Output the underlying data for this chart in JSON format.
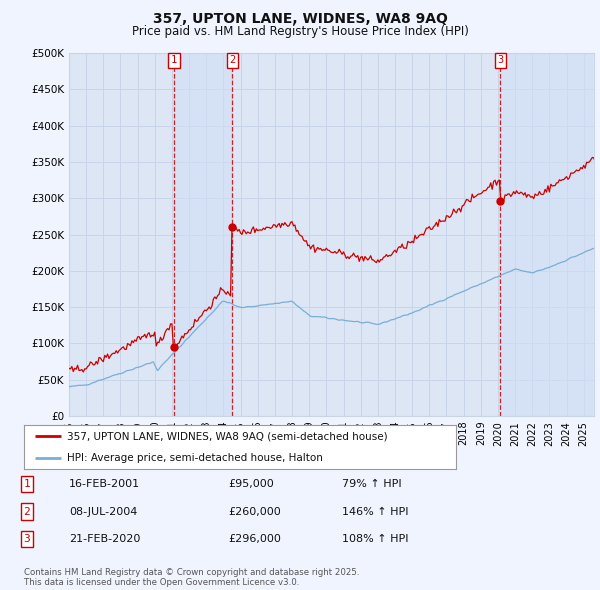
{
  "title": "357, UPTON LANE, WIDNES, WA8 9AQ",
  "subtitle": "Price paid vs. HM Land Registry's House Price Index (HPI)",
  "background_color": "#f0f4ff",
  "plot_bg_color": "#dce6f5",
  "ylim": [
    0,
    500000
  ],
  "yticks": [
    0,
    50000,
    100000,
    150000,
    200000,
    250000,
    300000,
    350000,
    400000,
    450000,
    500000
  ],
  "ytick_labels": [
    "£0",
    "£50K",
    "£100K",
    "£150K",
    "£200K",
    "£250K",
    "£300K",
    "£350K",
    "£400K",
    "£450K",
    "£500K"
  ],
  "legend_line1": "357, UPTON LANE, WIDNES, WA8 9AQ (semi-detached house)",
  "legend_line2": "HPI: Average price, semi-detached house, Halton",
  "footer": "Contains HM Land Registry data © Crown copyright and database right 2025.\nThis data is licensed under the Open Government Licence v3.0.",
  "transactions": [
    {
      "num": "1",
      "date": "16-FEB-2001",
      "price": "£95,000",
      "hpi": "79% ↑ HPI",
      "year": 2001.12
    },
    {
      "num": "2",
      "date": "08-JUL-2004",
      "price": "£260,000",
      "hpi": "146% ↑ HPI",
      "year": 2004.52
    },
    {
      "num": "3",
      "date": "21-FEB-2020",
      "price": "£296,000",
      "hpi": "108% ↑ HPI",
      "year": 2020.14
    }
  ],
  "transaction_values_red": [
    95000,
    260000,
    296000
  ],
  "line_color_red": "#cc0000",
  "line_color_blue": "#7aaed6",
  "vline_color": "#cc0000",
  "grid_color": "#c8d4e8",
  "shade_color": "#d0dff5",
  "xlim_left": 1995.5,
  "xlim_right": 2025.5
}
